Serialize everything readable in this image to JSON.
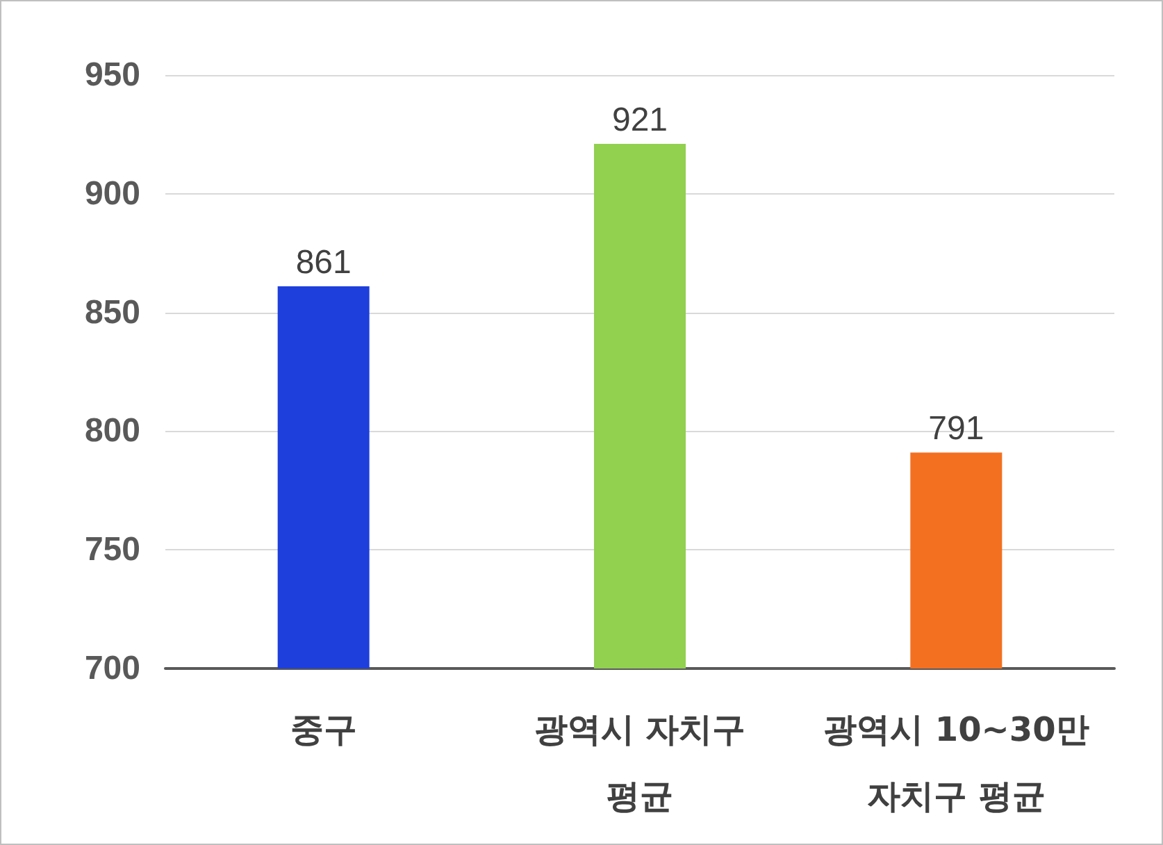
{
  "chart_data": {
    "type": "bar",
    "categories": [
      "중구",
      "광역시 자치구\n평균",
      "광역시 10~30만\n자치구 평균"
    ],
    "values": [
      861,
      921,
      791
    ],
    "colors": [
      "#1f3fdc",
      "#92d050",
      "#f37020"
    ],
    "ylim": [
      700,
      950
    ],
    "yticks": [
      700,
      750,
      800,
      850,
      900,
      950
    ],
    "grid": "y",
    "data_labels": true
  }
}
